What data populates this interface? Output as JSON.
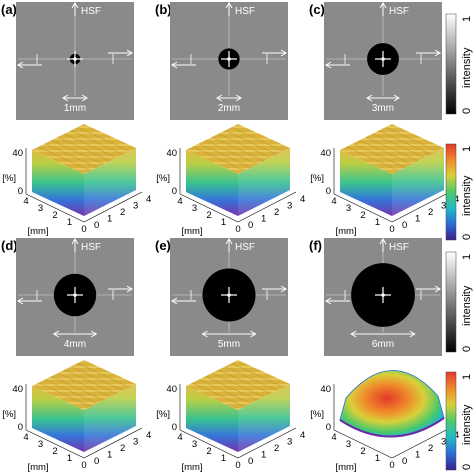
{
  "panels": [
    {
      "label": "(a)",
      "hsf": "HSF",
      "size": "1mm",
      "radius": 0.045
    },
    {
      "label": "(b)",
      "hsf": "HSF",
      "size": "2mm",
      "radius": 0.09
    },
    {
      "label": "(c)",
      "hsf": "HSF",
      "size": "3mm",
      "radius": 0.135
    },
    {
      "label": "(d)",
      "hsf": "HSF",
      "size": "4mm",
      "radius": 0.18
    },
    {
      "label": "(e)",
      "hsf": "HSF",
      "size": "5mm",
      "radius": 0.225
    },
    {
      "label": "(f)",
      "hsf": "HSF",
      "size": "6mm",
      "radius": 0.27
    }
  ],
  "plots3d": [
    {
      "zlabel": "[%]",
      "xlabel": "[mm]",
      "zticks": [
        "0",
        "40"
      ],
      "xticks": [
        "4",
        "3",
        "2",
        "1",
        "0"
      ],
      "yticks": [
        "0",
        "1",
        "2",
        "3",
        "4"
      ],
      "surface": "flat",
      "color": "#d9b23a"
    },
    {
      "zlabel": "[%]",
      "xlabel": "[mm]",
      "zticks": [
        "0",
        "40"
      ],
      "xticks": [
        "4",
        "3",
        "2",
        "1",
        "0"
      ],
      "yticks": [
        "0",
        "1",
        "2",
        "3",
        "4"
      ],
      "surface": "flat",
      "color": "#d9b23a"
    },
    {
      "zlabel": "[%]",
      "xlabel": "[mm]",
      "zticks": [
        "0",
        "40"
      ],
      "xticks": [
        "4",
        "3",
        "2",
        "1",
        "0"
      ],
      "yticks": [
        "0",
        "1",
        "2",
        "3",
        "4"
      ],
      "surface": "flat",
      "color": "#d9b23a"
    },
    {
      "zlabel": "[%]",
      "xlabel": "[mm]",
      "zticks": [
        "0",
        "40"
      ],
      "xticks": [
        "4",
        "3",
        "2",
        "1",
        "0"
      ],
      "yticks": [
        "0",
        "1",
        "2",
        "3",
        "4"
      ],
      "surface": "flat",
      "color": "#d9b23a"
    },
    {
      "zlabel": "[%]",
      "xlabel": "[mm]",
      "zticks": [
        "0",
        "40"
      ],
      "xticks": [
        "4",
        "3",
        "2",
        "1",
        "0"
      ],
      "yticks": [
        "0",
        "1",
        "2",
        "3",
        "4"
      ],
      "surface": "flat",
      "color": "#d9b23a"
    },
    {
      "zlabel": "[%]",
      "xlabel": "[mm]",
      "zticks": [
        "0",
        "40"
      ],
      "xticks": [
        "4",
        "3",
        "2",
        "1",
        "0"
      ],
      "yticks": [
        "0",
        "1",
        "2",
        "3",
        "4"
      ],
      "surface": "dome",
      "color": "#e8763a"
    }
  ],
  "colorbar_gray": {
    "title": "intensity",
    "min": "0",
    "max": "1",
    "from": "#000000",
    "to": "#ffffff"
  },
  "colorbar_jet": {
    "title": "intensity",
    "min": "0",
    "max": "1",
    "stops": [
      "#3a1f8c",
      "#2a6fd6",
      "#22b8c8",
      "#4cc96a",
      "#d8d03a",
      "#f08a2a",
      "#e23a2a"
    ]
  }
}
